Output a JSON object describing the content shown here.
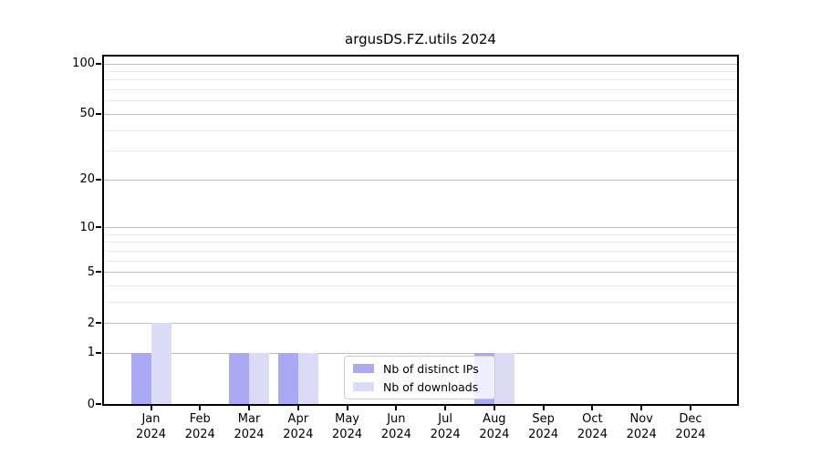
{
  "title": "argusDS.FZ.utils 2024",
  "colors": {
    "distinct_ips": "#a9a9f4",
    "downloads": "#dcdcf7",
    "grid_major": "#bdbdbd",
    "grid_minor": "#e9e9e9",
    "axis": "#000000",
    "background": "#ffffff"
  },
  "legend": {
    "items": [
      {
        "label": "Nb of distinct IPs"
      },
      {
        "label": "Nb of downloads"
      }
    ]
  },
  "chart_data": {
    "type": "bar",
    "title": "argusDS.FZ.utils 2024",
    "categories": [
      "Jan",
      "Feb",
      "Mar",
      "Apr",
      "May",
      "Jun",
      "Jul",
      "Aug",
      "Sep",
      "Oct",
      "Nov",
      "Dec"
    ],
    "category_year": "2024",
    "series": [
      {
        "name": "Nb of distinct IPs",
        "values": [
          1,
          0,
          1,
          1,
          0,
          0,
          0,
          1,
          0,
          0,
          0,
          0
        ],
        "color": "#a9a9f4"
      },
      {
        "name": "Nb of downloads",
        "values": [
          2,
          0,
          1,
          1,
          0,
          0,
          0,
          1,
          0,
          0,
          0,
          0
        ],
        "color": "#dcdcf7"
      }
    ],
    "xlabel": "",
    "ylabel": "",
    "yscale": "log1p",
    "ylim": [
      0,
      110
    ],
    "y_major_ticks": [
      0,
      1,
      2,
      5,
      10,
      20,
      50,
      100
    ],
    "y_minor_ticks": [
      3,
      4,
      6,
      7,
      8,
      9,
      30,
      40,
      60,
      70,
      80,
      90
    ],
    "grid": true,
    "legend_position": "lower center"
  }
}
